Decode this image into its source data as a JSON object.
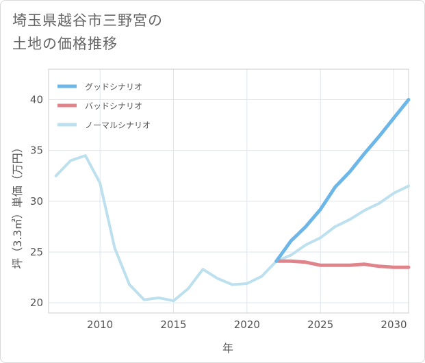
{
  "chart_data": {
    "type": "line",
    "title_lines": [
      "埼玉県越谷市三野宮の",
      "土地の価格推移"
    ],
    "xlabel": "年",
    "ylabel": "坪（3.3㎡）単価（万円）",
    "xlim": [
      2006.5,
      2031
    ],
    "ylim": [
      19,
      43
    ],
    "x_ticks": [
      2010,
      2015,
      2020,
      2025,
      2030
    ],
    "y_ticks": [
      20,
      25,
      30,
      35,
      40
    ],
    "grid": true,
    "legend_position": "top-left",
    "series": [
      {
        "name": "グッドシナリオ",
        "color": "#6cb6e8",
        "width": 5,
        "x": [
          2022,
          2023,
          2024,
          2025,
          2026,
          2027,
          2028,
          2029,
          2030,
          2031
        ],
        "values": [
          24.1,
          26.1,
          27.5,
          29.2,
          31.4,
          32.9,
          34.7,
          36.4,
          38.2,
          40.0
        ]
      },
      {
        "name": "バッドシナリオ",
        "color": "#e0848c",
        "width": 5,
        "x": [
          2022,
          2023,
          2024,
          2025,
          2026,
          2027,
          2028,
          2029,
          2030,
          2031
        ],
        "values": [
          24.1,
          24.1,
          24.0,
          23.7,
          23.7,
          23.7,
          23.8,
          23.6,
          23.5,
          23.5
        ]
      },
      {
        "name": "ノーマルシナリオ",
        "color": "#bde0ef",
        "width": 4,
        "x": [
          2007,
          2008,
          2009,
          2010,
          2011,
          2012,
          2013,
          2014,
          2015,
          2016,
          2017,
          2018,
          2019,
          2020,
          2021,
          2022,
          2023,
          2024,
          2025,
          2026,
          2027,
          2028,
          2029,
          2030,
          2031
        ],
        "values": [
          32.5,
          34.0,
          34.5,
          31.8,
          25.4,
          21.8,
          20.3,
          20.5,
          20.2,
          21.4,
          23.3,
          22.4,
          21.8,
          21.9,
          22.6,
          24.1,
          24.7,
          25.7,
          26.4,
          27.5,
          28.2,
          29.1,
          29.8,
          30.8,
          31.5
        ]
      }
    ]
  }
}
